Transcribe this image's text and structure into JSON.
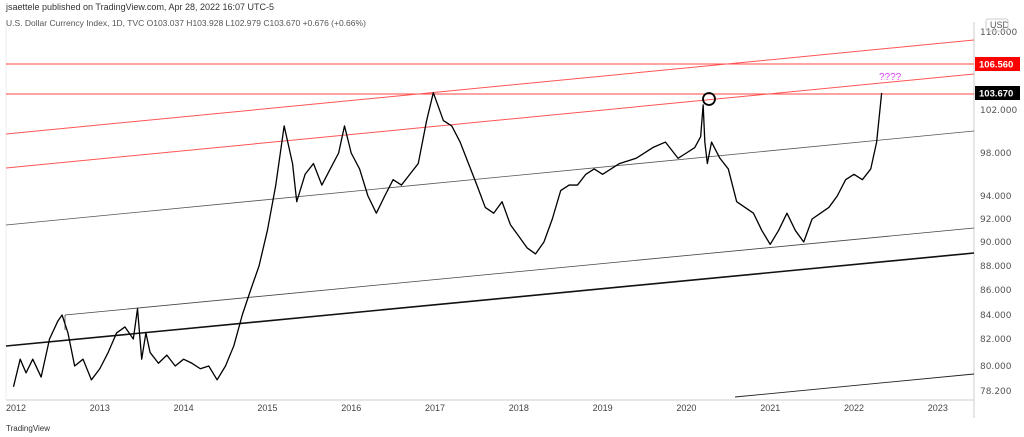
{
  "header": {
    "published": "jsaettele published on TradingView.com, Apr 28, 2022 16:07 UTC-5",
    "legend": "U.S. Dollar Currency Index, 1D, TVC  O103.037  H103.928  L102.979  C103.670  +0.676 (+0.66%)"
  },
  "footer": {
    "logo": "TradingView"
  },
  "chart_data": {
    "type": "line",
    "title": "U.S. Dollar Currency Index, 1D, TVC",
    "currency": "USD",
    "scale": "log",
    "ohlc": {
      "open": 103.037,
      "high": 103.928,
      "low": 102.979,
      "close": 103.67,
      "change": "+0.676 (+0.66%)"
    },
    "x_ticks": [
      "2012",
      "2013",
      "2014",
      "2015",
      "2016",
      "2017",
      "2018",
      "2019",
      "2020",
      "2021",
      "2022",
      "2023"
    ],
    "y_ticks": [
      "110.000",
      "102.000",
      "98.000",
      "94.000",
      "92.000",
      "90.000",
      "88.000",
      "86.000",
      "84.000",
      "82.000",
      "80.000",
      "78.200"
    ],
    "price_labels": [
      {
        "value": "106.560",
        "color": "#ff0000"
      },
      {
        "value": "103.670",
        "color": "#000000"
      }
    ],
    "annotation": {
      "text": "????",
      "color": "#e040fb"
    },
    "series": [
      {
        "x": [
          2011.97,
          2012.05,
          2012.12,
          2012.2,
          2012.3,
          2012.4,
          2012.5,
          2012.55,
          2012.62,
          2012.7,
          2012.8,
          2012.9,
          2013.0,
          2013.1,
          2013.2,
          2013.3,
          2013.4,
          2013.45,
          2013.5,
          2013.55,
          2013.6,
          2013.7,
          2013.8,
          2013.9,
          2014.0,
          2014.1,
          2014.2,
          2014.3,
          2014.4,
          2014.5,
          2014.6,
          2014.7,
          2014.8,
          2014.9,
          2015.0,
          2015.1,
          2015.2,
          2015.3,
          2015.35,
          2015.45,
          2015.55,
          2015.65,
          2015.75,
          2015.85,
          2015.92,
          2016.0,
          2016.1,
          2016.2,
          2016.3,
          2016.4,
          2016.5,
          2016.6,
          2016.7,
          2016.8,
          2016.9,
          2016.98,
          2017.1,
          2017.2,
          2017.3,
          2017.4,
          2017.5,
          2017.6,
          2017.7,
          2017.8,
          2017.9,
          2018.0,
          2018.1,
          2018.2,
          2018.3,
          2018.4,
          2018.5,
          2018.6,
          2018.7,
          2018.8,
          2018.9,
          2019.0,
          2019.2,
          2019.4,
          2019.6,
          2019.75,
          2019.9,
          2020.0,
          2020.1,
          2020.17,
          2020.2,
          2020.22,
          2020.25,
          2020.3,
          2020.4,
          2020.5,
          2020.6,
          2020.7,
          2020.8,
          2020.9,
          2021.0,
          2021.1,
          2021.2,
          2021.3,
          2021.4,
          2021.5,
          2021.6,
          2021.7,
          2021.8,
          2021.9,
          2022.0,
          2022.1,
          2022.2,
          2022.27,
          2022.33
        ],
        "y": [
          78.5,
          80.5,
          79.5,
          80.5,
          79.2,
          82,
          83.5,
          84,
          82.5,
          80,
          80.5,
          79,
          79.8,
          81,
          82.5,
          83,
          82,
          84.5,
          80.5,
          82.5,
          81,
          80.2,
          80.8,
          80,
          80.5,
          80.2,
          79.8,
          80,
          79,
          80,
          81.5,
          84,
          86,
          88,
          91,
          95,
          100.5,
          97,
          93.5,
          96,
          97,
          95,
          96.5,
          98,
          100.5,
          98,
          96.5,
          94,
          92.5,
          94,
          95.5,
          95,
          96,
          97,
          101,
          103.7,
          101,
          100.5,
          99,
          97,
          95,
          93,
          92.5,
          93.5,
          91.5,
          90.5,
          89.5,
          89,
          90,
          92,
          94.5,
          95,
          95,
          96,
          96.5,
          96,
          97,
          97.5,
          98.5,
          99,
          97.5,
          98,
          98.5,
          99.5,
          102.5,
          99,
          97,
          99,
          97.5,
          96.5,
          93.5,
          93,
          92.5,
          91,
          89.8,
          91,
          92.5,
          91,
          90,
          92,
          92.5,
          93,
          94,
          95.5,
          96,
          95.5,
          96.5,
          99,
          103.67
        ]
      }
    ]
  }
}
